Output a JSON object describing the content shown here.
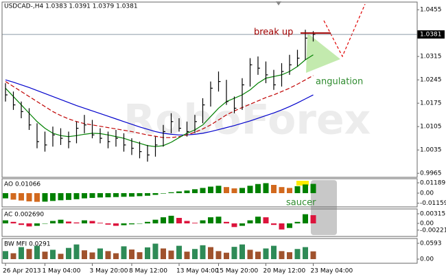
{
  "title": "USDCAD-,H4 1.0383 1.0391 1.0379 1.0381",
  "watermark": "RoboForex",
  "annotations": {
    "break_up": "break up",
    "angulation": "angulation",
    "saucer": "saucer"
  },
  "chart_data": [
    {
      "type": "ohlc",
      "categories": [
        "26 Apr 2013",
        null,
        null,
        null,
        null,
        "1 May 04:00",
        null,
        null,
        null,
        null,
        null,
        "3 May 20:00",
        null,
        null,
        null,
        null,
        "8 May 12:00",
        null,
        null,
        null,
        null,
        null,
        "13 May 04:00",
        null,
        null,
        null,
        null,
        "15 May 20:00",
        null,
        null,
        null,
        null,
        null,
        "20 May 12:00",
        null,
        null,
        null,
        null,
        null,
        "23 May 04:00"
      ],
      "high": [
        1.0235,
        1.021,
        1.018,
        1.016,
        1.0115,
        1.009,
        1.0105,
        1.01,
        1.009,
        1.012,
        1.014,
        1.0125,
        1.01,
        1.009,
        1.0095,
        1.0085,
        1.007,
        1.006,
        1.005,
        1.0075,
        1.011,
        1.0145,
        1.013,
        1.012,
        1.014,
        1.019,
        1.024,
        1.027,
        1.0245,
        1.0195,
        1.025,
        1.031,
        1.0315,
        1.03,
        1.0275,
        1.0295,
        1.032,
        1.0335,
        1.0395,
        1.0391
      ],
      "low": [
        1.018,
        1.0155,
        1.013,
        1.0095,
        1.004,
        1.003,
        1.0045,
        1.005,
        1.004,
        1.0055,
        1.0085,
        1.007,
        1.0055,
        1.004,
        1.0045,
        1.003,
        1.002,
        1.001,
        1.0,
        1.0015,
        1.0045,
        1.0085,
        1.009,
        1.0075,
        1.0085,
        1.0115,
        1.0165,
        1.021,
        1.017,
        1.0145,
        1.0155,
        1.0225,
        1.026,
        1.0235,
        1.0215,
        1.0225,
        1.026,
        1.0285,
        1.0305,
        1.036
      ],
      "close": [
        1.02,
        1.017,
        1.015,
        1.011,
        1.006,
        1.005,
        1.008,
        1.007,
        1.006,
        1.01,
        1.011,
        1.008,
        1.007,
        1.006,
        1.007,
        1.005,
        1.004,
        1.003,
        1.002,
        1.005,
        1.009,
        1.012,
        1.01,
        1.009,
        1.012,
        1.017,
        1.022,
        1.024,
        1.018,
        1.016,
        1.023,
        1.029,
        1.028,
        1.026,
        1.023,
        1.027,
        1.029,
        1.031,
        1.037,
        1.0381
      ],
      "lines": [
        {
          "color": "#0000cc",
          "dash": false,
          "values": [
            1.0245,
            1.0238,
            1.023,
            1.0222,
            1.0213,
            1.0204,
            1.0195,
            1.0186,
            1.0177,
            1.0168,
            1.016,
            1.0152,
            1.0144,
            1.0136,
            1.0128,
            1.012,
            1.0112,
            1.0104,
            1.0097,
            1.009,
            1.0085,
            1.0082,
            1.008,
            1.008,
            1.0082,
            1.0085,
            1.009,
            1.0096,
            1.0102,
            1.0108,
            1.0115,
            1.0122,
            1.013,
            1.0138,
            1.0146,
            1.0155,
            1.0165,
            1.0176,
            1.0188,
            1.02
          ]
        },
        {
          "color": "#c00000",
          "dash": true,
          "values": [
            1.024,
            1.0225,
            1.021,
            1.0195,
            1.018,
            1.0165,
            1.015,
            1.0138,
            1.0128,
            1.012,
            1.0114,
            1.011,
            1.0106,
            1.0102,
            1.0098,
            1.0094,
            1.009,
            1.0085,
            1.008,
            1.0076,
            1.0072,
            1.0072,
            1.0075,
            1.008,
            1.0088,
            1.0098,
            1.011,
            1.0125,
            1.014,
            1.0152,
            1.0162,
            1.0172,
            1.0182,
            1.0192,
            1.02,
            1.021,
            1.022,
            1.0232,
            1.0245,
            1.0258
          ]
        },
        {
          "color": "#008000",
          "dash": false,
          "values": [
            1.022,
            1.0195,
            1.017,
            1.0145,
            1.012,
            1.01,
            1.0085,
            1.0078,
            1.0075,
            1.0078,
            1.0082,
            1.0085,
            1.0084,
            1.008,
            1.0075,
            1.007,
            1.0062,
            1.0055,
            1.0048,
            1.0045,
            1.0048,
            1.0058,
            1.0072,
            1.0085,
            1.0095,
            1.011,
            1.0135,
            1.016,
            1.018,
            1.019,
            1.02,
            1.0215,
            1.0235,
            1.025,
            1.0255,
            1.026,
            1.027,
            1.0285,
            1.0305,
            1.032
          ]
        }
      ],
      "current_price": 1.0381,
      "break_level": 1.0385,
      "ylim": [
        0.9953,
        1.0478
      ],
      "yticks": [
        1.0455,
        1.0315,
        1.0245,
        1.0175,
        1.0105,
        1.0035,
        0.9965
      ]
    },
    {
      "type": "histogram",
      "title": "AO 0.01066",
      "values": [
        -0.006,
        -0.0075,
        -0.0085,
        -0.0095,
        -0.01,
        -0.0098,
        -0.009,
        -0.0082,
        -0.0078,
        -0.007,
        -0.006,
        -0.0055,
        -0.005,
        -0.0048,
        -0.0045,
        -0.0042,
        -0.004,
        -0.0035,
        -0.003,
        -0.002,
        -0.0005,
        0.001,
        0.002,
        0.003,
        0.0045,
        0.006,
        0.0075,
        0.0085,
        0.007,
        0.0055,
        0.006,
        0.0085,
        0.0105,
        0.0115,
        0.0095,
        0.007,
        0.006,
        0.008,
        0.01,
        0.01066
      ],
      "colors": {
        "up": "#008000",
        "down": "#d2691e"
      },
      "ylim": [
        -0.01585,
        0.01664
      ],
      "yticks": [
        0.01189,
        {
          "value": 0,
          "label": "0.00"
        },
        -0.01159
      ]
    },
    {
      "type": "histogram",
      "title": "AC 0.002690",
      "values": [
        0.001,
        0.0005,
        -0.0005,
        -0.001,
        -0.0008,
        0.0,
        0.0008,
        0.0012,
        0.0006,
        0.0003,
        0.001,
        0.0008,
        0.0002,
        -0.0004,
        -0.0008,
        -0.0006,
        -0.0003,
        0.0,
        0.0005,
        0.0012,
        0.002,
        0.0025,
        0.0018,
        0.0008,
        0.0002,
        0.001,
        0.002,
        0.0022,
        0.0005,
        -0.0012,
        -0.0008,
        0.001,
        0.0022,
        0.002,
        -0.0005,
        -0.002,
        -0.0015,
        0.0005,
        0.003,
        0.00269
      ],
      "colors": {
        "up": "#008000",
        "down": "#dc143c"
      },
      "ylim": [
        -0.00428,
        0.00473
      ],
      "yticks": [
        0.00315,
        {
          "value": 0,
          "label": "0.00"
        },
        -0.00221
      ]
    },
    {
      "type": "histogram",
      "title": "BW MFI 0.0291",
      "values": [
        0.03,
        0.022,
        0.045,
        0.038,
        0.05,
        0.028,
        0.035,
        0.02,
        0.042,
        0.055,
        0.033,
        0.025,
        0.04,
        0.03,
        0.022,
        0.048,
        0.036,
        0.026,
        0.044,
        0.058,
        0.04,
        0.032,
        0.05,
        0.028,
        0.038,
        0.052,
        0.045,
        0.03,
        0.024,
        0.046,
        0.055,
        0.035,
        0.028,
        0.04,
        0.05,
        0.03,
        0.026,
        0.038,
        0.045,
        0.0291
      ],
      "colors": {
        "up": "#2e8b57",
        "down": "#a0522d"
      },
      "ylim": [
        -0.0155,
        0.0773
      ],
      "yticks": [
        0.0593,
        {
          "value": 0,
          "label": "0.00"
        }
      ]
    }
  ]
}
